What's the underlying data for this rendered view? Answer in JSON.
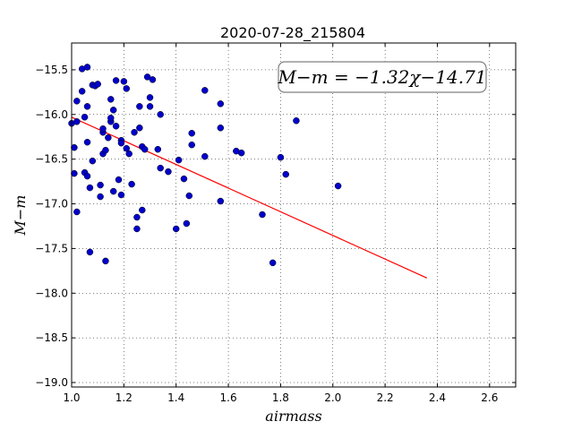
{
  "chart_data": {
    "type": "scatter",
    "title": "2020-07-28_215804",
    "xlabel": "airmass",
    "ylabel": "M−m",
    "xlim": [
      1.0,
      2.7
    ],
    "ylim": [
      -19.05,
      -15.2
    ],
    "xticks": [
      1.0,
      1.2,
      1.4,
      1.6,
      1.8,
      2.0,
      2.2,
      2.4,
      2.6
    ],
    "xtick_labels": [
      "1.0",
      "1.2",
      "1.4",
      "1.6",
      "1.8",
      "2.0",
      "2.2",
      "2.4",
      "2.6"
    ],
    "yticks": [
      -15.5,
      -16.0,
      -16.5,
      -17.0,
      -17.5,
      -18.0,
      -18.5,
      -19.0
    ],
    "ytick_labels": [
      "−15.5",
      "−16.0",
      "−16.5",
      "−17.0",
      "−17.5",
      "−18.0",
      "−18.5",
      "−19.0"
    ],
    "grid": true,
    "annotation": "M−m = −1.32χ−14.71",
    "annotation_position": "top-right",
    "point_color": "#0000cc",
    "fit_color": "#ff0000",
    "fit_line": {
      "x": [
        1.0,
        2.36
      ],
      "y": [
        -16.03,
        -17.83
      ]
    },
    "points": [
      {
        "x": 1.0,
        "y": -16.1
      },
      {
        "x": 1.01,
        "y": -16.37
      },
      {
        "x": 1.01,
        "y": -16.66
      },
      {
        "x": 1.02,
        "y": -16.08
      },
      {
        "x": 1.02,
        "y": -15.85
      },
      {
        "x": 1.02,
        "y": -17.09
      },
      {
        "x": 1.04,
        "y": -15.49
      },
      {
        "x": 1.04,
        "y": -15.74
      },
      {
        "x": 1.05,
        "y": -16.65
      },
      {
        "x": 1.05,
        "y": -16.03
      },
      {
        "x": 1.06,
        "y": -15.47
      },
      {
        "x": 1.06,
        "y": -15.91
      },
      {
        "x": 1.06,
        "y": -16.31
      },
      {
        "x": 1.06,
        "y": -16.69
      },
      {
        "x": 1.07,
        "y": -16.82
      },
      {
        "x": 1.07,
        "y": -17.54
      },
      {
        "x": 1.08,
        "y": -15.67
      },
      {
        "x": 1.08,
        "y": -16.52
      },
      {
        "x": 1.09,
        "y": -15.68
      },
      {
        "x": 1.1,
        "y": -15.66
      },
      {
        "x": 1.11,
        "y": -16.79
      },
      {
        "x": 1.11,
        "y": -16.92
      },
      {
        "x": 1.12,
        "y": -16.44
      },
      {
        "x": 1.12,
        "y": -16.2
      },
      {
        "x": 1.12,
        "y": -16.16
      },
      {
        "x": 1.13,
        "y": -16.4
      },
      {
        "x": 1.13,
        "y": -17.64
      },
      {
        "x": 1.14,
        "y": -16.26
      },
      {
        "x": 1.15,
        "y": -16.08
      },
      {
        "x": 1.15,
        "y": -16.04
      },
      {
        "x": 1.15,
        "y": -15.83
      },
      {
        "x": 1.16,
        "y": -15.95
      },
      {
        "x": 1.16,
        "y": -16.86
      },
      {
        "x": 1.17,
        "y": -15.62
      },
      {
        "x": 1.17,
        "y": -16.13
      },
      {
        "x": 1.18,
        "y": -16.73
      },
      {
        "x": 1.19,
        "y": -16.29
      },
      {
        "x": 1.19,
        "y": -16.32
      },
      {
        "x": 1.19,
        "y": -16.9
      },
      {
        "x": 1.2,
        "y": -15.63
      },
      {
        "x": 1.21,
        "y": -15.71
      },
      {
        "x": 1.21,
        "y": -16.38
      },
      {
        "x": 1.22,
        "y": -16.44
      },
      {
        "x": 1.23,
        "y": -16.78
      },
      {
        "x": 1.24,
        "y": -16.2
      },
      {
        "x": 1.25,
        "y": -17.15
      },
      {
        "x": 1.25,
        "y": -17.28
      },
      {
        "x": 1.26,
        "y": -15.91
      },
      {
        "x": 1.26,
        "y": -16.15
      },
      {
        "x": 1.27,
        "y": -17.07
      },
      {
        "x": 1.27,
        "y": -16.36
      },
      {
        "x": 1.28,
        "y": -16.39
      },
      {
        "x": 1.29,
        "y": -15.58
      },
      {
        "x": 1.3,
        "y": -15.91
      },
      {
        "x": 1.3,
        "y": -15.81
      },
      {
        "x": 1.31,
        "y": -15.61
      },
      {
        "x": 1.33,
        "y": -16.39
      },
      {
        "x": 1.34,
        "y": -16.0
      },
      {
        "x": 1.34,
        "y": -16.6
      },
      {
        "x": 1.37,
        "y": -16.64
      },
      {
        "x": 1.4,
        "y": -17.28
      },
      {
        "x": 1.41,
        "y": -16.51
      },
      {
        "x": 1.43,
        "y": -16.72
      },
      {
        "x": 1.44,
        "y": -17.22
      },
      {
        "x": 1.45,
        "y": -16.91
      },
      {
        "x": 1.46,
        "y": -16.34
      },
      {
        "x": 1.46,
        "y": -16.21
      },
      {
        "x": 1.51,
        "y": -15.73
      },
      {
        "x": 1.51,
        "y": -16.47
      },
      {
        "x": 1.57,
        "y": -15.88
      },
      {
        "x": 1.57,
        "y": -16.15
      },
      {
        "x": 1.57,
        "y": -16.97
      },
      {
        "x": 1.63,
        "y": -16.41
      },
      {
        "x": 1.65,
        "y": -16.43
      },
      {
        "x": 1.73,
        "y": -17.12
      },
      {
        "x": 1.77,
        "y": -17.66
      },
      {
        "x": 1.8,
        "y": -16.48
      },
      {
        "x": 1.82,
        "y": -16.67
      },
      {
        "x": 1.86,
        "y": -16.07
      },
      {
        "x": 2.02,
        "y": -16.8
      }
    ]
  }
}
